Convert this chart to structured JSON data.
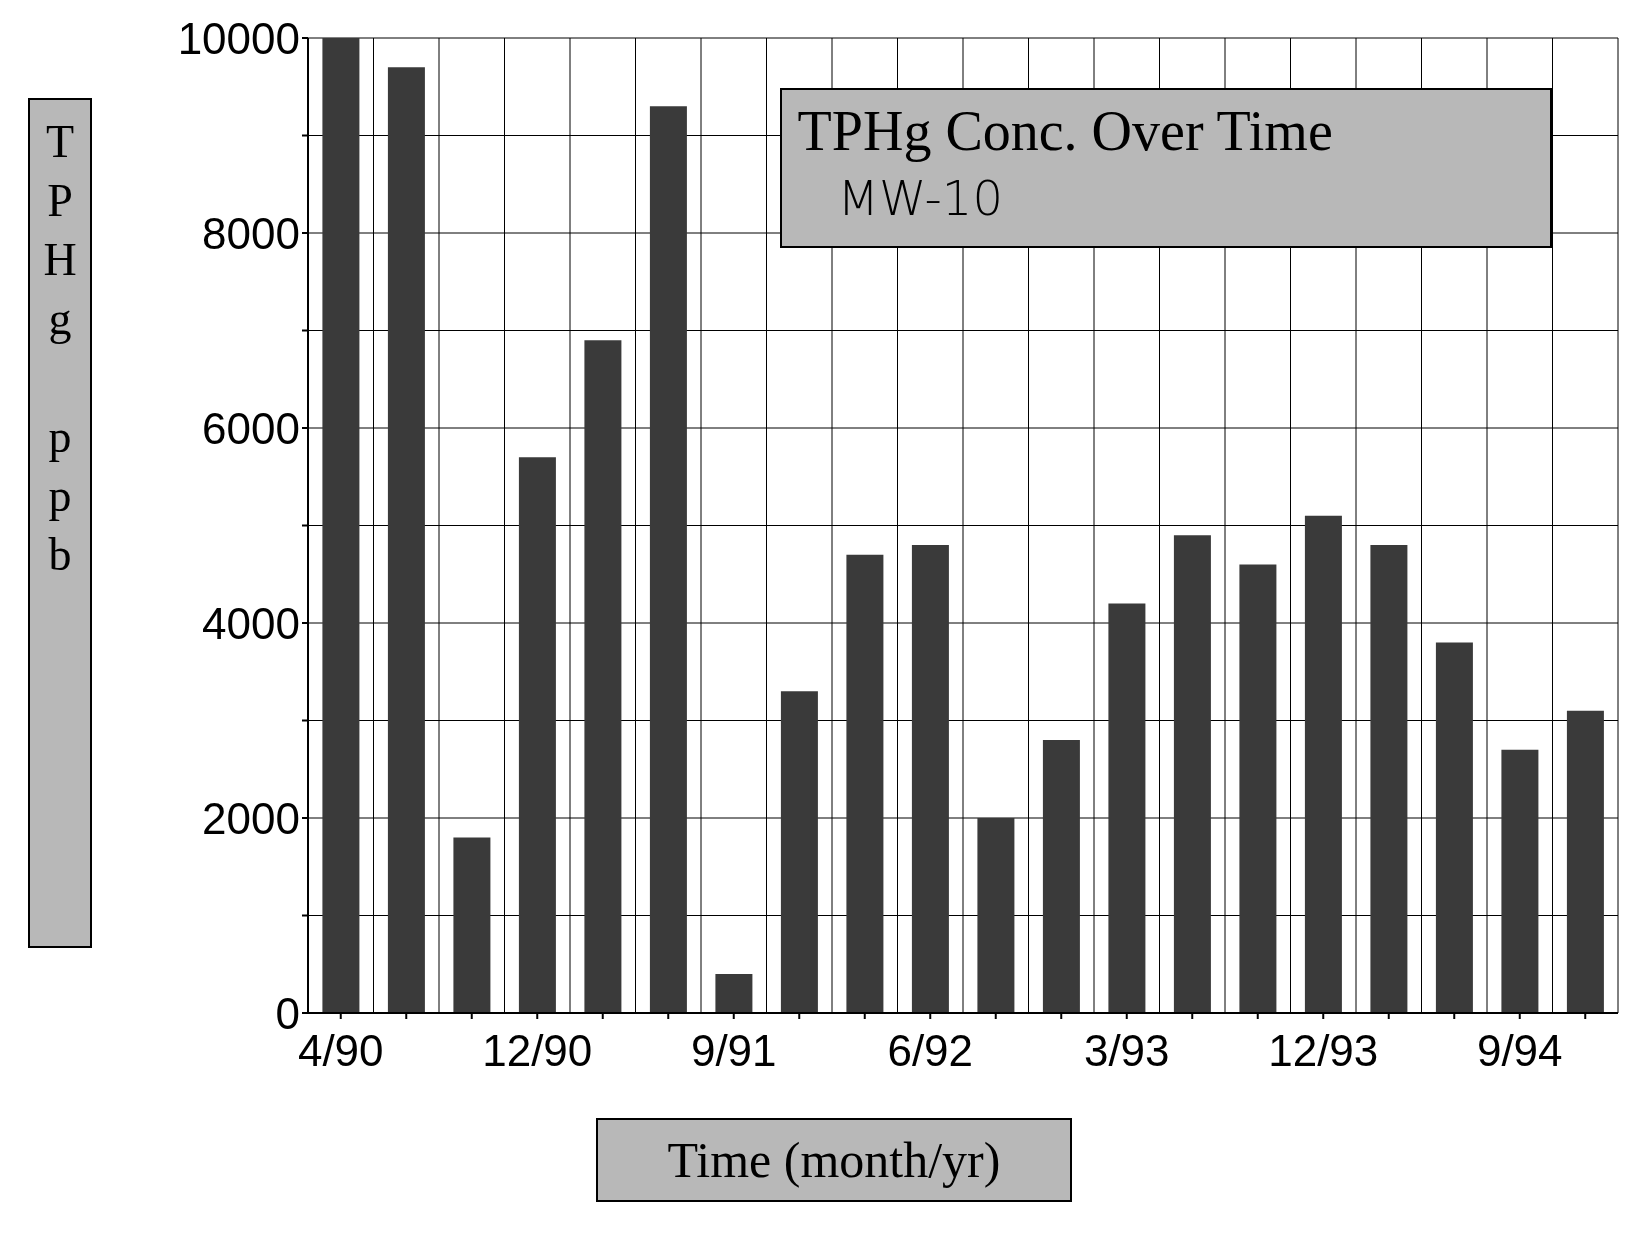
{
  "chart_data": {
    "type": "bar",
    "title": "TPHg Conc. Over Time",
    "subtitle": "MW-10",
    "xlabel": "Time (month/yr)",
    "ylabel": "TPHg ppb",
    "categories": [
      "4/90",
      null,
      null,
      "12/90",
      null,
      null,
      "9/91",
      null,
      null,
      "6/92",
      null,
      null,
      "3/93",
      null,
      null,
      "12/93",
      null,
      null,
      "9/94",
      null
    ],
    "values": [
      10000,
      9700,
      1800,
      5700,
      6900,
      9300,
      400,
      3300,
      4700,
      4800,
      2000,
      2800,
      4200,
      4900,
      4600,
      5100,
      4800,
      3800,
      2700,
      3100
    ],
    "color": "#3a3a3a",
    "ylim": [
      0,
      10000
    ],
    "yticks": [
      0,
      {
        "value": 1000,
        "label": null
      },
      2000,
      {
        "value": 3000,
        "label": null
      },
      4000,
      {
        "value": 5000,
        "label": null
      },
      6000,
      {
        "value": 7000,
        "label": null
      },
      8000,
      {
        "value": 9000,
        "label": null
      },
      10000
    ],
    "grid": true
  }
}
